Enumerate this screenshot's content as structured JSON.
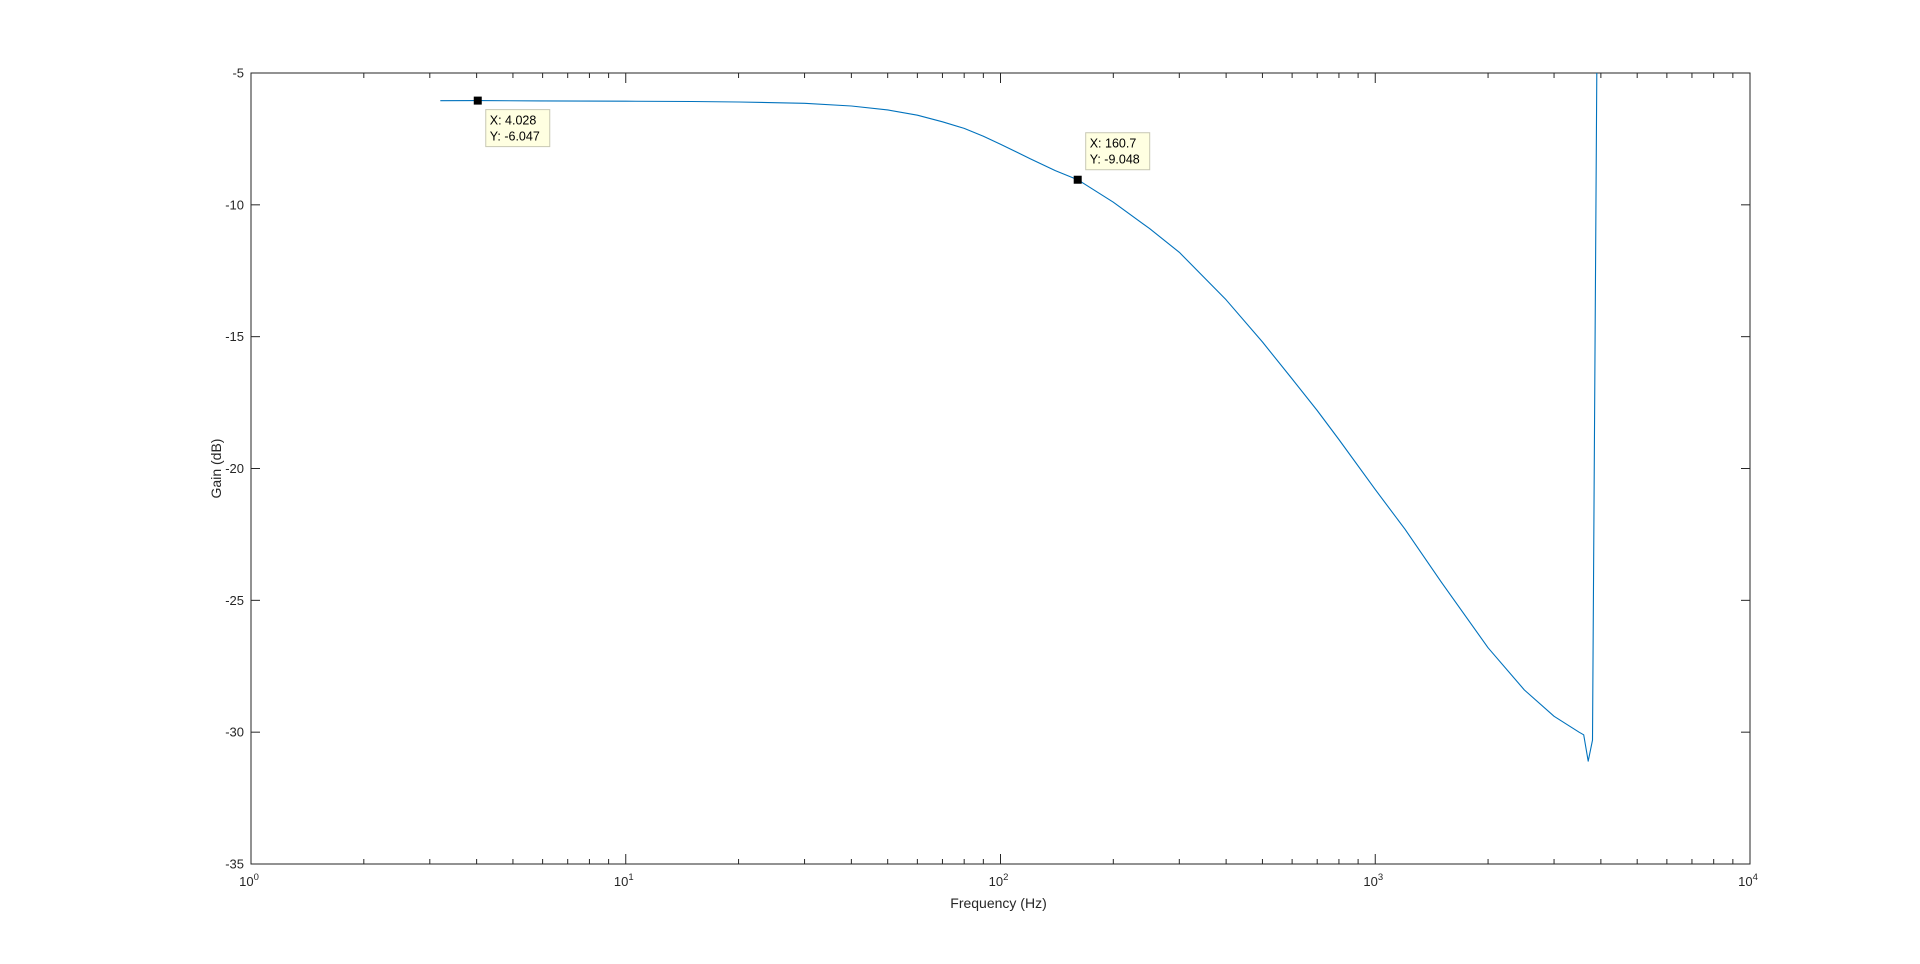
{
  "chart_data": {
    "type": "line",
    "title": "",
    "xlabel": "Frequency (Hz)",
    "ylabel": "Gain (dB)",
    "xscale": "log",
    "xlim": [
      1,
      10000
    ],
    "ylim": [
      -35,
      -5
    ],
    "grid": false,
    "legend": "none",
    "x_ticks": [
      {
        "value": 1,
        "base": "10",
        "exp": "0"
      },
      {
        "value": 10,
        "base": "10",
        "exp": "1"
      },
      {
        "value": 100,
        "base": "10",
        "exp": "2"
      },
      {
        "value": 1000,
        "base": "10",
        "exp": "3"
      },
      {
        "value": 10000,
        "base": "10",
        "exp": "4"
      }
    ],
    "y_ticks": [
      {
        "value": -5,
        "label": "-5"
      },
      {
        "value": -10,
        "label": "-10"
      },
      {
        "value": -15,
        "label": "-15"
      },
      {
        "value": -20,
        "label": "-20"
      },
      {
        "value": -25,
        "label": "-25"
      },
      {
        "value": -30,
        "label": "-30"
      },
      {
        "value": -35,
        "label": "-35"
      }
    ],
    "series": [
      {
        "color": "#0072bd",
        "x": [
          3.2,
          4.028,
          6,
          10,
          15,
          20,
          30,
          40,
          50,
          60,
          70,
          80,
          90,
          100,
          120,
          140,
          160.7,
          200,
          250,
          300,
          400,
          500,
          600,
          700,
          800,
          1000,
          1200,
          1500,
          2000,
          2500,
          3000,
          3500,
          3600,
          3700,
          3800,
          3900
        ],
        "y": [
          -6.05,
          -6.047,
          -6.06,
          -6.07,
          -6.08,
          -6.1,
          -6.15,
          -6.25,
          -6.4,
          -6.6,
          -6.85,
          -7.1,
          -7.4,
          -7.7,
          -8.25,
          -8.7,
          -9.048,
          -9.9,
          -10.9,
          -11.8,
          -13.6,
          -15.2,
          -16.6,
          -17.8,
          -18.9,
          -20.8,
          -22.3,
          -24.3,
          -26.8,
          -28.4,
          -29.4,
          -30.0,
          -30.1,
          -31.1,
          -30.3,
          -5.0
        ]
      }
    ],
    "datatips": [
      {
        "x": 4.028,
        "y": -6.047,
        "label_x": "X: 4.028",
        "label_y": "Y: -6.047",
        "placement": "below-right"
      },
      {
        "x": 160.7,
        "y": -9.048,
        "label_x": "X: 160.7",
        "label_y": "Y: -9.048",
        "placement": "above-right"
      }
    ]
  }
}
